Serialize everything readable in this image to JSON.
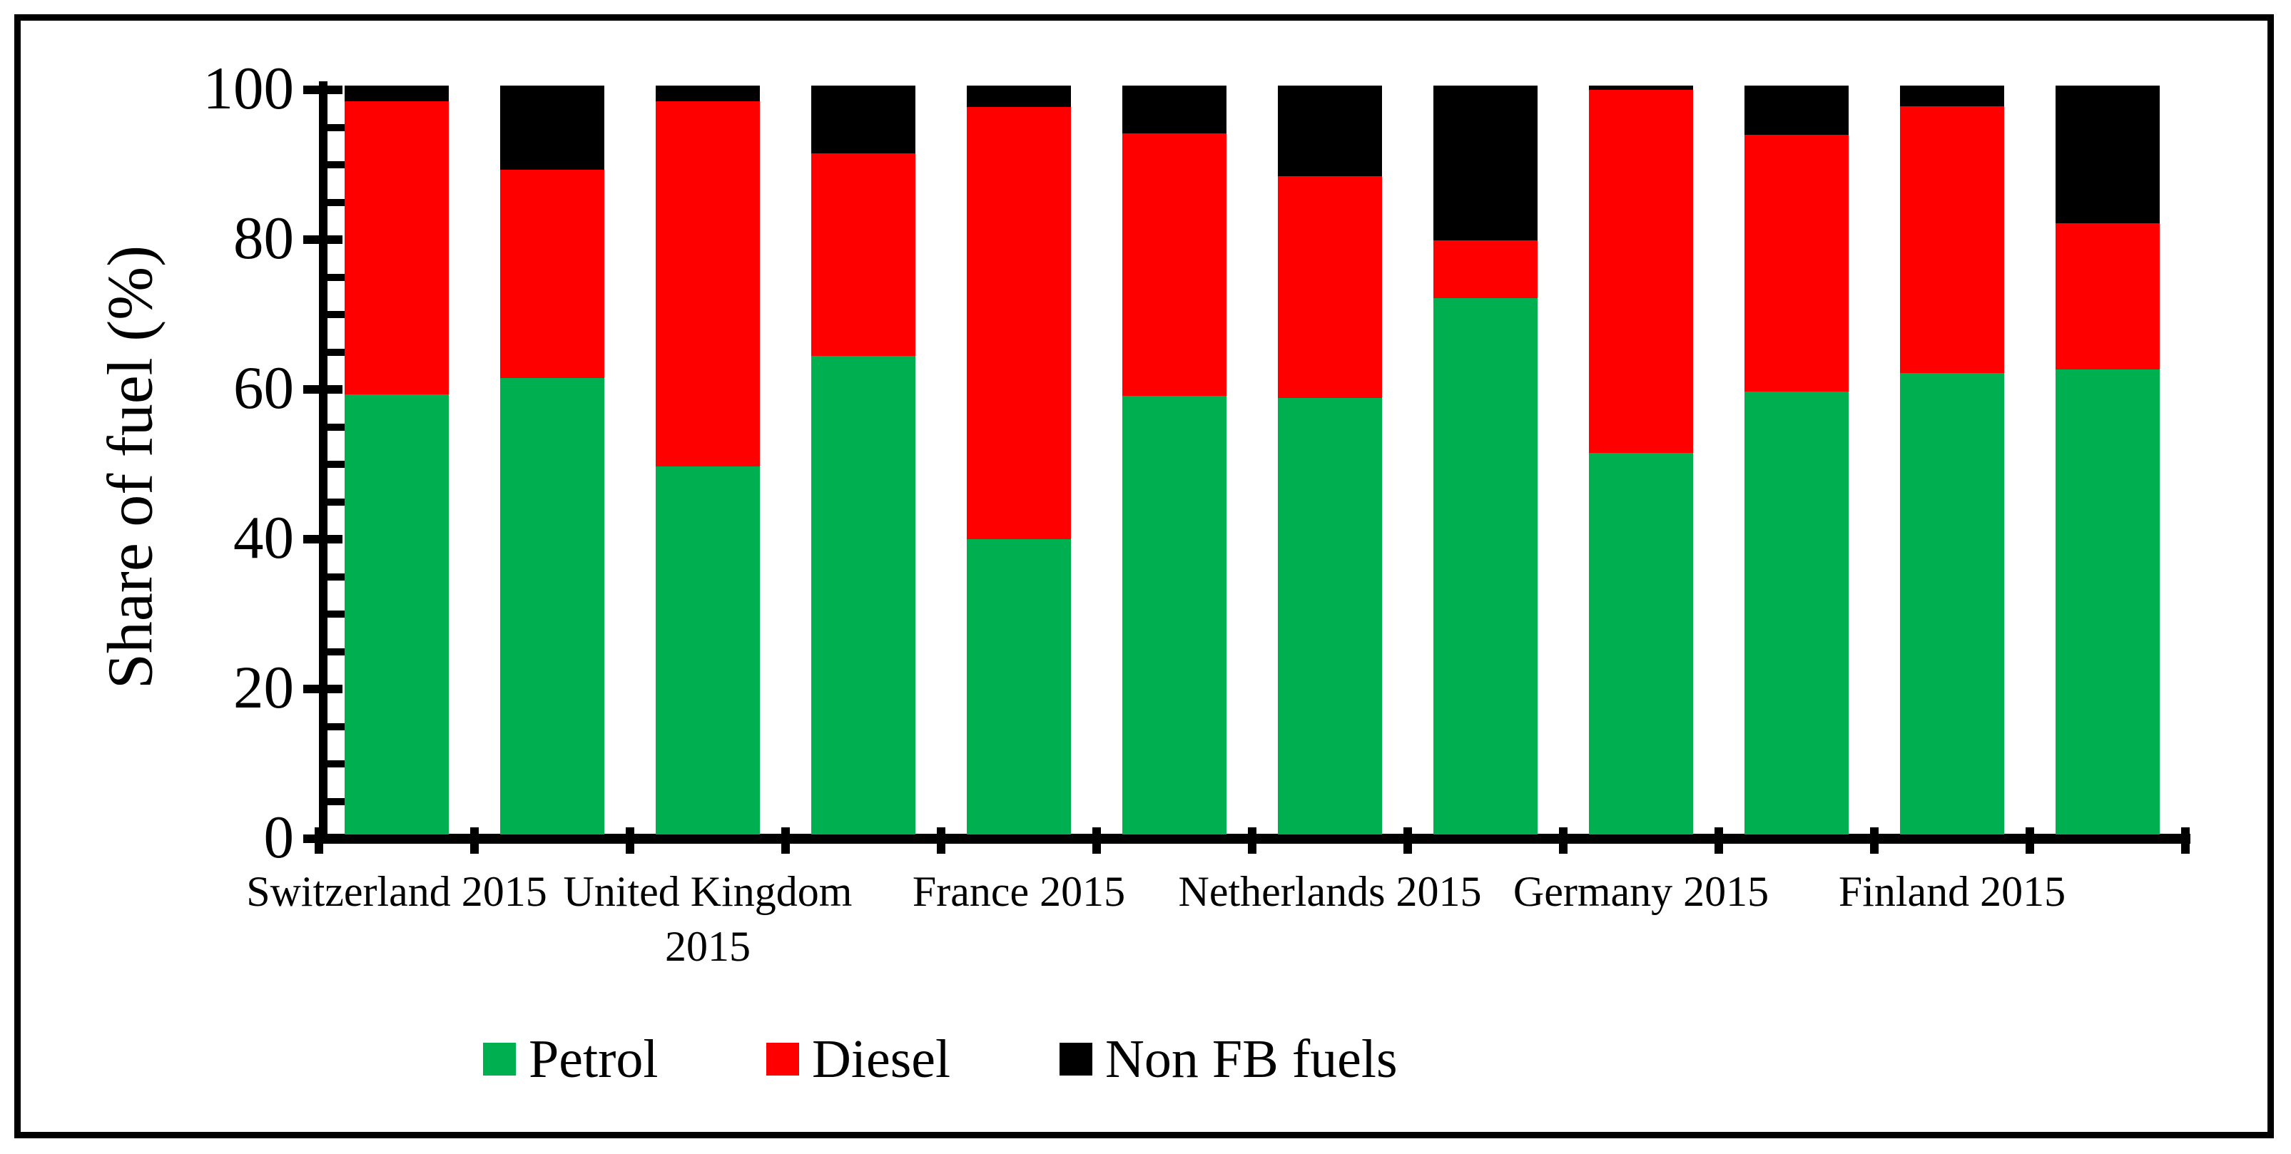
{
  "chart_data": {
    "type": "bar",
    "stacked": true,
    "title": "",
    "xlabel": "",
    "ylabel": "Share of fuel (%)",
    "ylim": [
      0,
      100
    ],
    "ytick_step": 20,
    "yminor_step": 5,
    "yticks": [
      0,
      20,
      40,
      60,
      80,
      100
    ],
    "grid": false,
    "legend_position": "bottom",
    "categories": [
      "Switzerland 2015",
      "",
      "United Kingdom 2015",
      "",
      "France 2015",
      "",
      "Netherlands 2015",
      "",
      "Germany 2015",
      "",
      "Finland 2015",
      ""
    ],
    "series": [
      {
        "name": "Petrol",
        "color": "#00B050",
        "values": [
          58.8,
          61.0,
          49.1,
          63.9,
          39.4,
          58.6,
          58.3,
          71.6,
          51.0,
          59.1,
          61.6,
          62.1
        ]
      },
      {
        "name": "Diesel",
        "color": "#FF0000",
        "values": [
          39.1,
          27.8,
          48.8,
          27.1,
          57.7,
          35.0,
          29.6,
          7.7,
          48.4,
          34.3,
          35.6,
          19.5
        ]
      },
      {
        "name": "Non FB fuels",
        "color": "#000000",
        "values": [
          2.1,
          11.2,
          2.1,
          9.0,
          2.9,
          6.4,
          12.1,
          20.7,
          0.6,
          6.6,
          2.8,
          18.4
        ]
      }
    ],
    "frame_color": "#000000",
    "axis_color": "#000000",
    "background_color": "#FFFFFF"
  }
}
